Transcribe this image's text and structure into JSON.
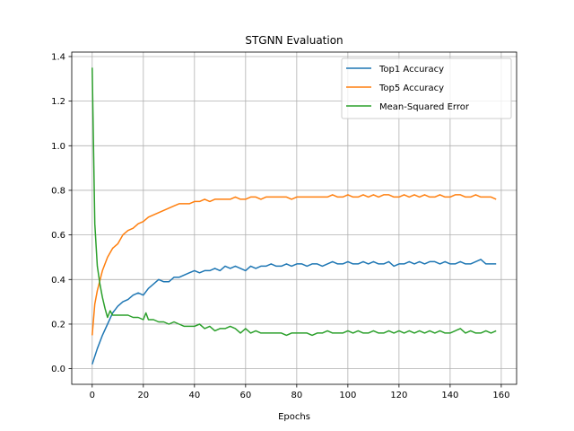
{
  "chart_data": {
    "type": "line",
    "title": "STGNN Evaluation",
    "xlabel": "Epochs",
    "ylabel": "",
    "xlim": [
      -8,
      166
    ],
    "ylim": [
      -0.07,
      1.42
    ],
    "xticks": [
      0,
      20,
      40,
      60,
      80,
      100,
      120,
      140,
      160
    ],
    "yticks": [
      0.0,
      0.2,
      0.4,
      0.6,
      0.8,
      1.0,
      1.2,
      1.4
    ],
    "ytick_labels": [
      "0.0",
      "0.2",
      "0.4",
      "0.6",
      "0.8",
      "1.0",
      "1.2",
      "1.4"
    ],
    "grid": true,
    "legend_position": "top-right",
    "series": [
      {
        "name": "Top1 Accuracy",
        "color": "#1f77b4",
        "x": [
          0,
          2,
          4,
          6,
          8,
          10,
          12,
          14,
          16,
          18,
          20,
          22,
          24,
          26,
          28,
          30,
          32,
          34,
          36,
          38,
          40,
          42,
          44,
          46,
          48,
          50,
          52,
          54,
          56,
          58,
          60,
          62,
          64,
          66,
          68,
          70,
          72,
          74,
          76,
          78,
          80,
          82,
          84,
          86,
          88,
          90,
          92,
          94,
          96,
          98,
          100,
          102,
          104,
          106,
          108,
          110,
          112,
          114,
          116,
          118,
          120,
          122,
          124,
          126,
          128,
          130,
          132,
          134,
          136,
          138,
          140,
          142,
          144,
          146,
          148,
          150,
          152,
          154,
          156,
          158
        ],
        "values": [
          0.02,
          0.09,
          0.15,
          0.2,
          0.25,
          0.28,
          0.3,
          0.31,
          0.33,
          0.34,
          0.33,
          0.36,
          0.38,
          0.4,
          0.39,
          0.39,
          0.41,
          0.41,
          0.42,
          0.43,
          0.44,
          0.43,
          0.44,
          0.44,
          0.45,
          0.44,
          0.46,
          0.45,
          0.46,
          0.45,
          0.44,
          0.46,
          0.45,
          0.46,
          0.46,
          0.47,
          0.46,
          0.46,
          0.47,
          0.46,
          0.47,
          0.47,
          0.46,
          0.47,
          0.47,
          0.46,
          0.47,
          0.48,
          0.47,
          0.47,
          0.48,
          0.47,
          0.47,
          0.48,
          0.47,
          0.48,
          0.47,
          0.47,
          0.48,
          0.46,
          0.47,
          0.47,
          0.48,
          0.47,
          0.48,
          0.47,
          0.48,
          0.48,
          0.47,
          0.48,
          0.47,
          0.47,
          0.48,
          0.47,
          0.47,
          0.48,
          0.49,
          0.47,
          0.47,
          0.47
        ]
      },
      {
        "name": "Top5 Accuracy",
        "color": "#ff7f0e",
        "x": [
          0,
          1,
          2,
          4,
          6,
          8,
          10,
          12,
          14,
          16,
          18,
          20,
          22,
          24,
          26,
          28,
          30,
          32,
          34,
          36,
          38,
          40,
          42,
          44,
          46,
          48,
          50,
          52,
          54,
          56,
          58,
          60,
          62,
          64,
          66,
          68,
          70,
          72,
          74,
          76,
          78,
          80,
          82,
          84,
          86,
          88,
          90,
          92,
          94,
          96,
          98,
          100,
          102,
          104,
          106,
          108,
          110,
          112,
          114,
          116,
          118,
          120,
          122,
          124,
          126,
          128,
          130,
          132,
          134,
          136,
          138,
          140,
          142,
          144,
          146,
          148,
          150,
          152,
          154,
          156,
          158
        ],
        "values": [
          0.15,
          0.29,
          0.35,
          0.44,
          0.5,
          0.54,
          0.56,
          0.6,
          0.62,
          0.63,
          0.65,
          0.66,
          0.68,
          0.69,
          0.7,
          0.71,
          0.72,
          0.73,
          0.74,
          0.74,
          0.74,
          0.75,
          0.75,
          0.76,
          0.75,
          0.76,
          0.76,
          0.76,
          0.76,
          0.77,
          0.76,
          0.76,
          0.77,
          0.77,
          0.76,
          0.77,
          0.77,
          0.77,
          0.77,
          0.77,
          0.76,
          0.77,
          0.77,
          0.77,
          0.77,
          0.77,
          0.77,
          0.77,
          0.78,
          0.77,
          0.77,
          0.78,
          0.77,
          0.77,
          0.78,
          0.77,
          0.78,
          0.77,
          0.78,
          0.78,
          0.77,
          0.77,
          0.78,
          0.77,
          0.78,
          0.77,
          0.78,
          0.77,
          0.77,
          0.78,
          0.77,
          0.77,
          0.78,
          0.78,
          0.77,
          0.77,
          0.78,
          0.77,
          0.77,
          0.77,
          0.76
        ]
      },
      {
        "name": "Mean-Squared Error",
        "color": "#2ca02c",
        "x": [
          0,
          1,
          2,
          3,
          4,
          5,
          6,
          7,
          8,
          10,
          12,
          14,
          16,
          18,
          20,
          21,
          22,
          24,
          26,
          28,
          30,
          32,
          34,
          36,
          38,
          40,
          42,
          44,
          46,
          48,
          50,
          52,
          54,
          56,
          58,
          60,
          62,
          64,
          66,
          68,
          70,
          72,
          74,
          76,
          78,
          80,
          82,
          84,
          86,
          88,
          90,
          92,
          94,
          96,
          98,
          100,
          102,
          104,
          106,
          108,
          110,
          112,
          114,
          116,
          118,
          120,
          122,
          124,
          126,
          128,
          130,
          132,
          134,
          136,
          138,
          140,
          142,
          144,
          146,
          148,
          150,
          152,
          154,
          156,
          158
        ],
        "values": [
          1.35,
          0.65,
          0.46,
          0.38,
          0.32,
          0.27,
          0.23,
          0.26,
          0.24,
          0.24,
          0.24,
          0.24,
          0.23,
          0.23,
          0.22,
          0.25,
          0.22,
          0.22,
          0.21,
          0.21,
          0.2,
          0.21,
          0.2,
          0.19,
          0.19,
          0.19,
          0.2,
          0.18,
          0.19,
          0.17,
          0.18,
          0.18,
          0.19,
          0.18,
          0.16,
          0.18,
          0.16,
          0.17,
          0.16,
          0.16,
          0.16,
          0.16,
          0.16,
          0.15,
          0.16,
          0.16,
          0.16,
          0.16,
          0.15,
          0.16,
          0.16,
          0.17,
          0.16,
          0.16,
          0.16,
          0.17,
          0.16,
          0.17,
          0.16,
          0.16,
          0.17,
          0.16,
          0.16,
          0.17,
          0.16,
          0.17,
          0.16,
          0.17,
          0.16,
          0.17,
          0.16,
          0.17,
          0.16,
          0.17,
          0.16,
          0.16,
          0.17,
          0.18,
          0.16,
          0.17,
          0.16,
          0.16,
          0.17,
          0.16,
          0.17
        ]
      }
    ]
  }
}
